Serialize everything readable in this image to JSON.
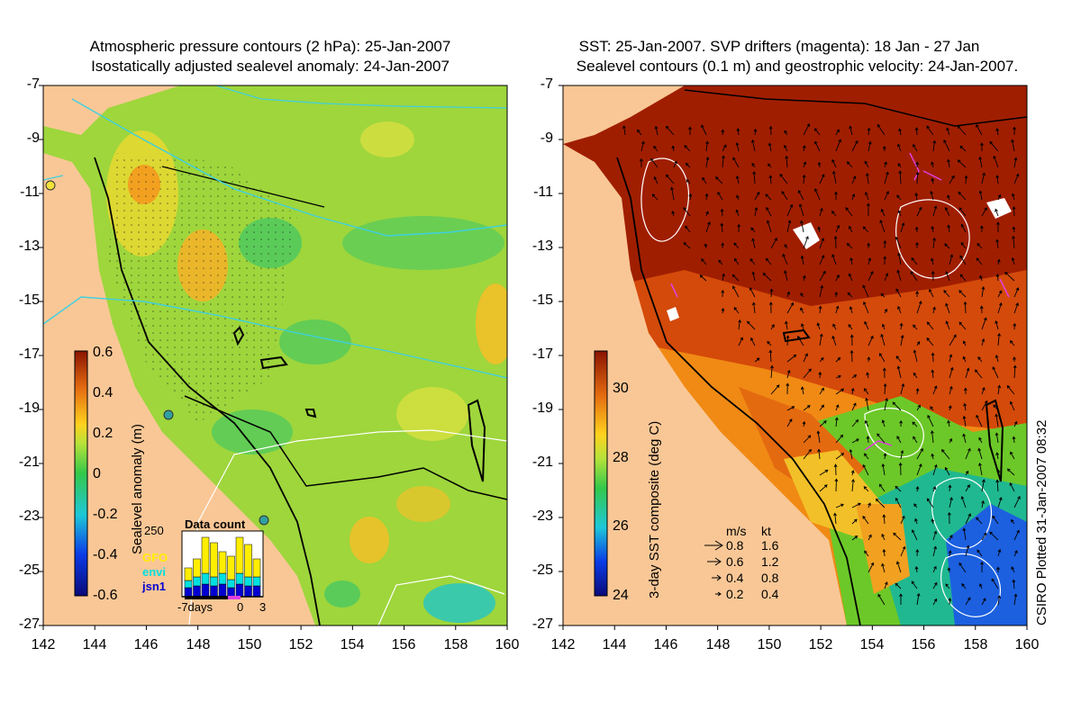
{
  "left_panel": {
    "title_line1": "Atmospheric pressure contours (2 hPa): 25-Jan-2007",
    "title_line2": "Isostatically adjusted sealevel anomaly: 24-Jan-2007",
    "lat_ticks": [
      "-7",
      "-9",
      "-11",
      "-13",
      "-15",
      "-17",
      "-19",
      "-21",
      "-23",
      "-25",
      "-27"
    ],
    "lon_ticks": [
      "142",
      "144",
      "146",
      "148",
      "150",
      "152",
      "154",
      "156",
      "158",
      "160"
    ],
    "colorbar": {
      "label": "Sealevel anomaly (m)",
      "ticks": [
        "0.6",
        "0.4",
        "0.2",
        "0",
        "-0.2",
        "-0.4",
        "-0.6"
      ],
      "range": [
        -0.6,
        0.6
      ]
    },
    "data_count": {
      "title": "Data count",
      "y_max_label": "250",
      "sources": [
        {
          "name": "GFO",
          "color": "#ffee00"
        },
        {
          "name": "envi",
          "color": "#00e0e0"
        },
        {
          "name": "jsn1",
          "color": "#0000d0"
        }
      ],
      "x_labels": [
        "-7days",
        "0",
        "3"
      ]
    }
  },
  "right_panel": {
    "title_line1": "SST: 25-Jan-2007. SVP drifters (magenta): 18 Jan - 27 Jan",
    "title_line2": "Sealevel contours (0.1 m) and geostrophic velocity: 24-Jan-2007.",
    "lat_ticks": [
      "-7",
      "-9",
      "-11",
      "-13",
      "-15",
      "-17",
      "-19",
      "-21",
      "-23",
      "-25",
      "-27"
    ],
    "lon_ticks": [
      "142",
      "144",
      "146",
      "148",
      "150",
      "152",
      "154",
      "156",
      "158",
      "160"
    ],
    "colorbar": {
      "label": "3-day SST composite (deg C)",
      "ticks": [
        "30",
        "28",
        "26",
        "24"
      ],
      "range": [
        24,
        31
      ]
    },
    "velocity_legend": {
      "header_ms": "m/s",
      "header_kt": "kt",
      "rows": [
        {
          "ms": "0.8",
          "kt": "1.6"
        },
        {
          "ms": "0.6",
          "kt": "1.2"
        },
        {
          "ms": "0.4",
          "kt": "0.8"
        },
        {
          "ms": "0.2",
          "kt": "0.4"
        }
      ]
    }
  },
  "credit": "CSIRO Plotted 31-Jan-2007 08:32",
  "colors": {
    "land": "#f9c796",
    "ocean_anomaly": "#9ed63c",
    "sst_warm": "#9c1a00",
    "contour_cyan": "#3fd0e0"
  }
}
